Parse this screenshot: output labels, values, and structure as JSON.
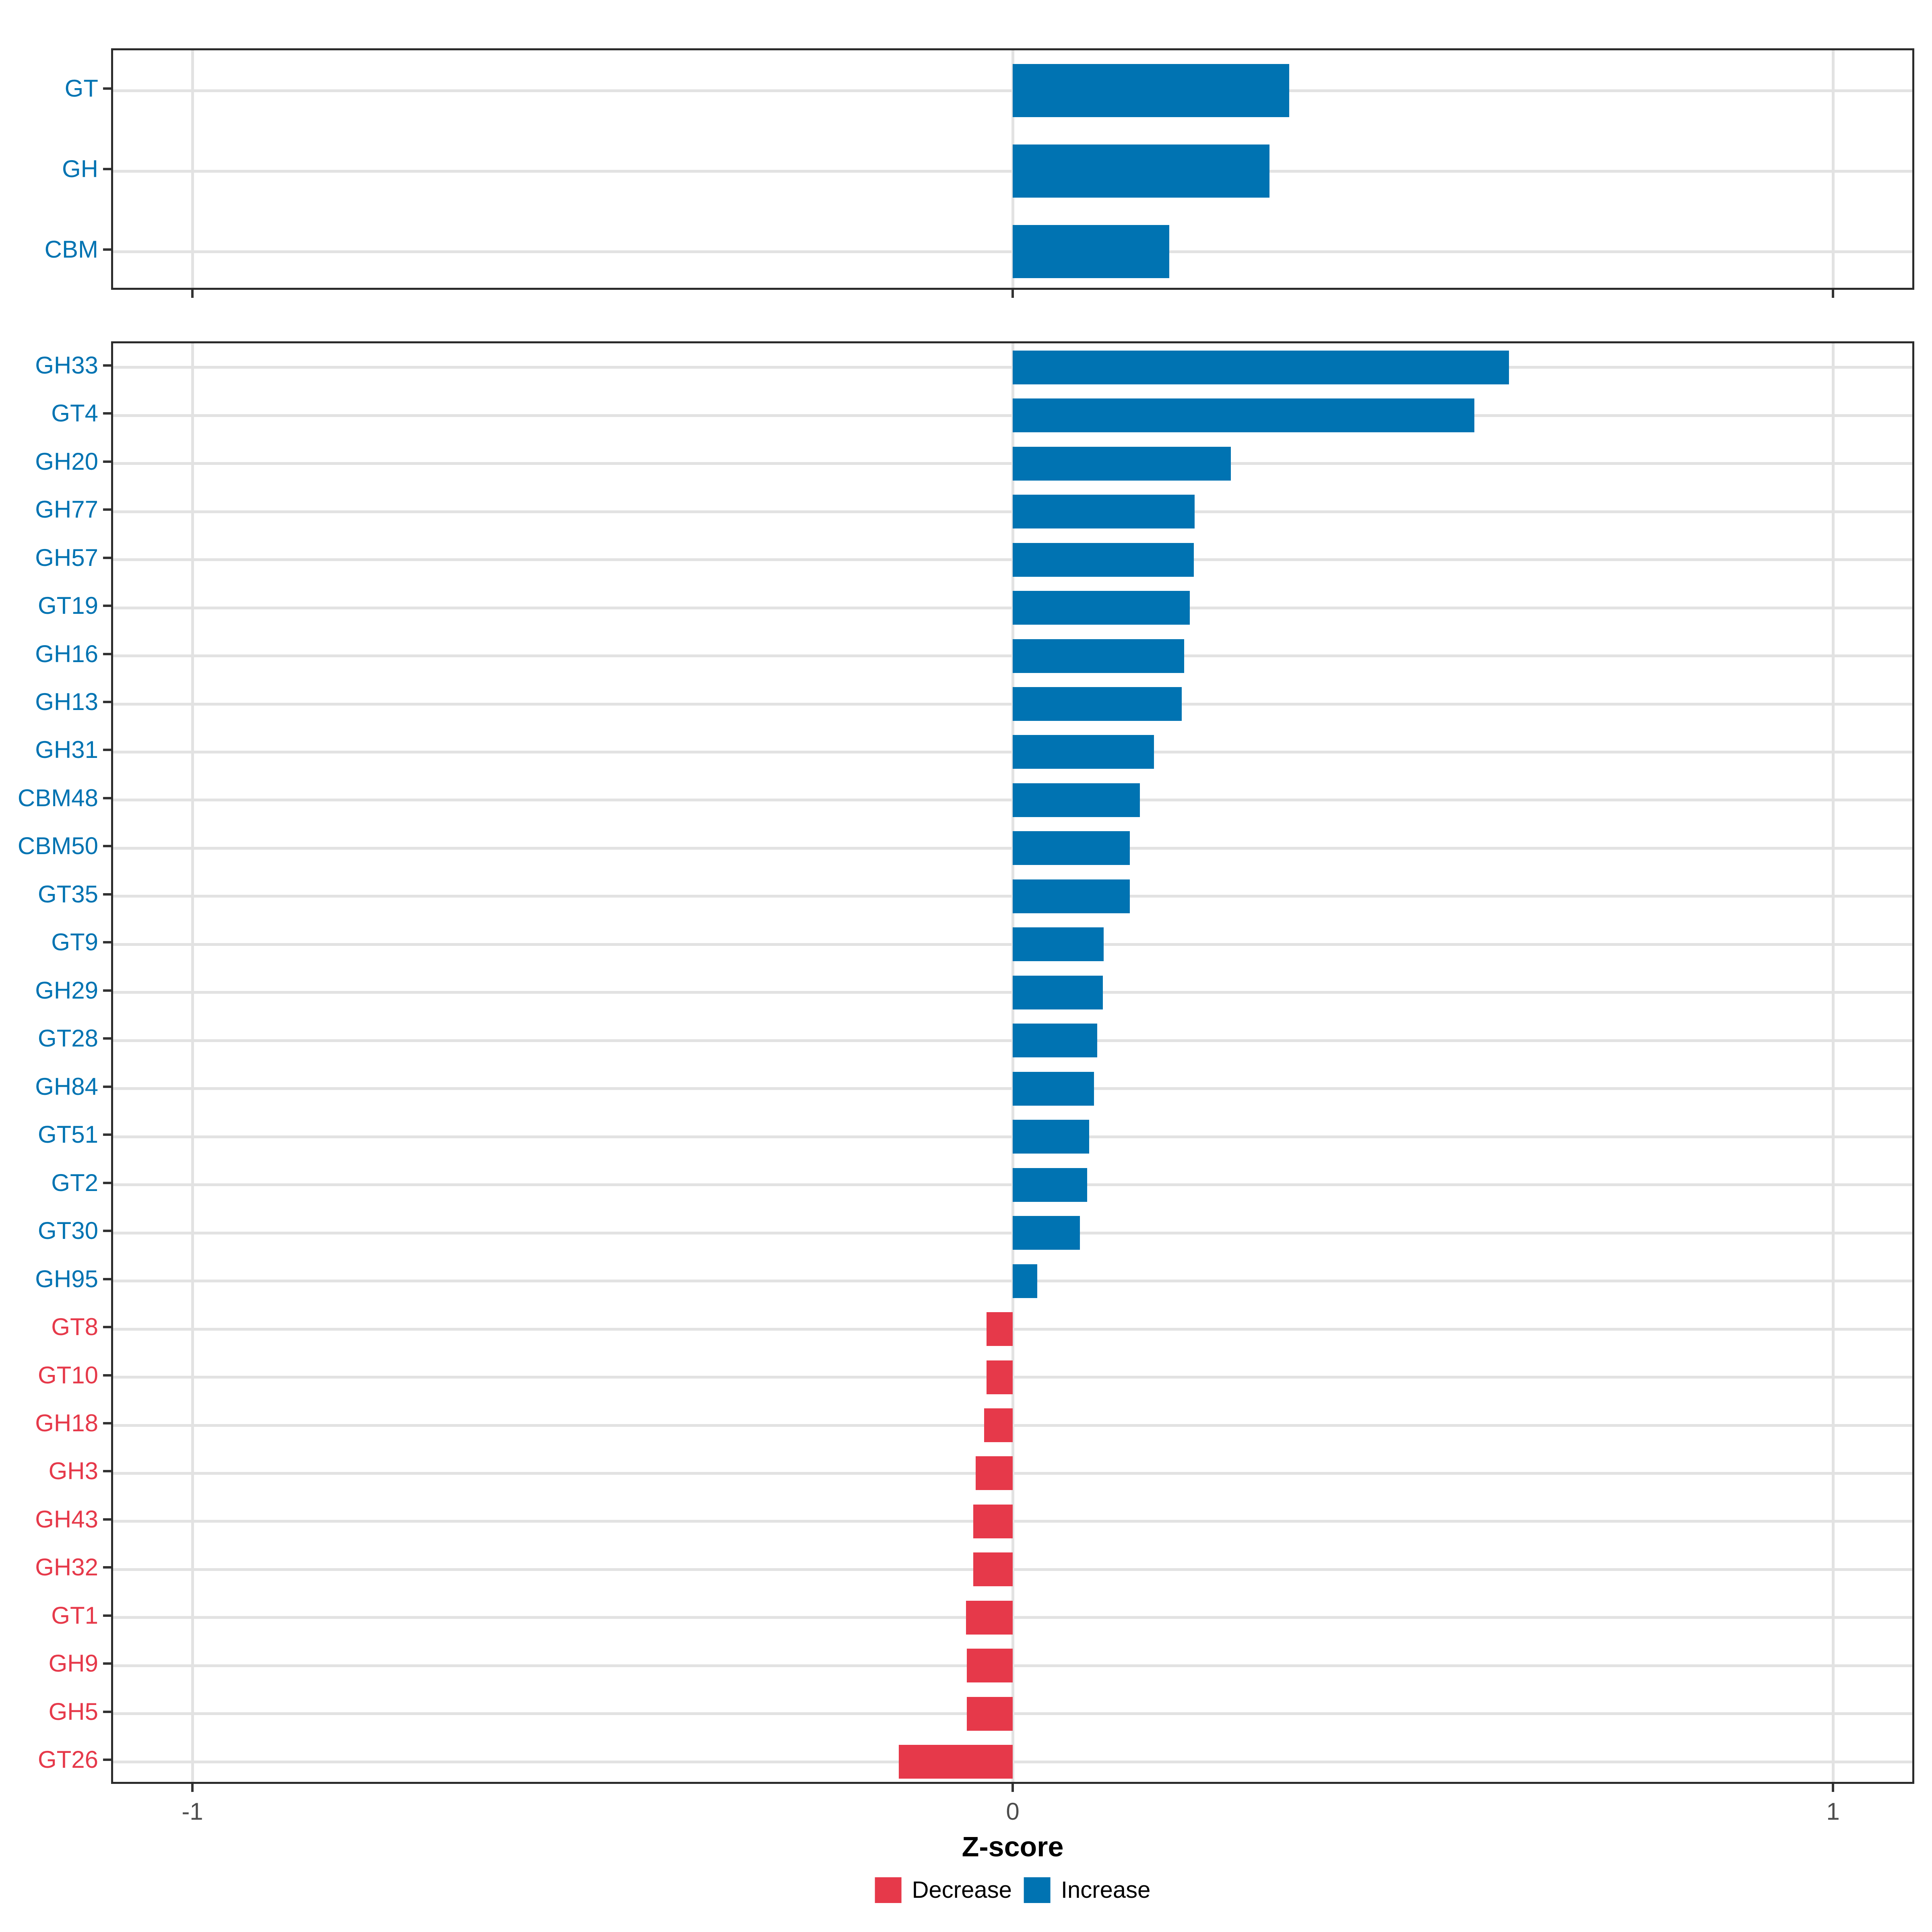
{
  "figure": {
    "x_axis": {
      "title": "Z-score",
      "ticks": [
        "-1",
        "0",
        "1"
      ],
      "tick_values": [
        -1,
        0,
        1
      ],
      "range": [
        -1.1,
        1.1
      ]
    },
    "legend": [
      {
        "label": "Decrease",
        "color": "#E6394A"
      },
      {
        "label": "Increase",
        "color": "#0073B2"
      }
    ],
    "colors": {
      "increase": "#0073B2",
      "decrease": "#E6394A",
      "grid": "#E2E2E2",
      "axis_text": "#4D4D4D",
      "panel_border": "#2B2B2B",
      "tick": "#333333",
      "background": "#FFFFFF"
    }
  },
  "chart_data": [
    {
      "type": "bar",
      "orientation": "horizontal",
      "panel": "cazyme-classes",
      "categories": [
        "GT",
        "GH",
        "CBM"
      ],
      "values": [
        0.337,
        0.313,
        0.191
      ],
      "direction": [
        "Increase",
        "Increase",
        "Increase"
      ],
      "xlabel": "Z-score",
      "xlim": [
        -1.1,
        1.1
      ],
      "grid": true,
      "legend_position": "bottom"
    },
    {
      "type": "bar",
      "orientation": "horizontal",
      "panel": "cazyme-families",
      "categories": [
        "GH33",
        "GT4",
        "GH20",
        "GH77",
        "GH57",
        "GT19",
        "GH16",
        "GH13",
        "GH31",
        "CBM48",
        "CBM50",
        "GT35",
        "GT9",
        "GH29",
        "GT28",
        "GH84",
        "GT51",
        "GT2",
        "GT30",
        "GH95",
        "GT8",
        "GT10",
        "GH18",
        "GH3",
        "GH43",
        "GH32",
        "GT1",
        "GH9",
        "GH5",
        "GT26"
      ],
      "values": [
        0.605,
        0.563,
        0.266,
        0.222,
        0.221,
        0.216,
        0.209,
        0.206,
        0.172,
        0.155,
        0.143,
        0.143,
        0.111,
        0.11,
        0.103,
        0.099,
        0.093,
        0.091,
        0.082,
        0.03,
        -0.032,
        -0.032,
        -0.035,
        -0.045,
        -0.048,
        -0.048,
        -0.057,
        -0.056,
        -0.056,
        -0.139
      ],
      "direction": [
        "Increase",
        "Increase",
        "Increase",
        "Increase",
        "Increase",
        "Increase",
        "Increase",
        "Increase",
        "Increase",
        "Increase",
        "Increase",
        "Increase",
        "Increase",
        "Increase",
        "Increase",
        "Increase",
        "Increase",
        "Increase",
        "Increase",
        "Increase",
        "Decrease",
        "Decrease",
        "Decrease",
        "Decrease",
        "Decrease",
        "Decrease",
        "Decrease",
        "Decrease",
        "Decrease",
        "Decrease"
      ],
      "xlabel": "Z-score",
      "xlim": [
        -1.1,
        1.1
      ],
      "grid": true,
      "legend_position": "bottom"
    }
  ]
}
